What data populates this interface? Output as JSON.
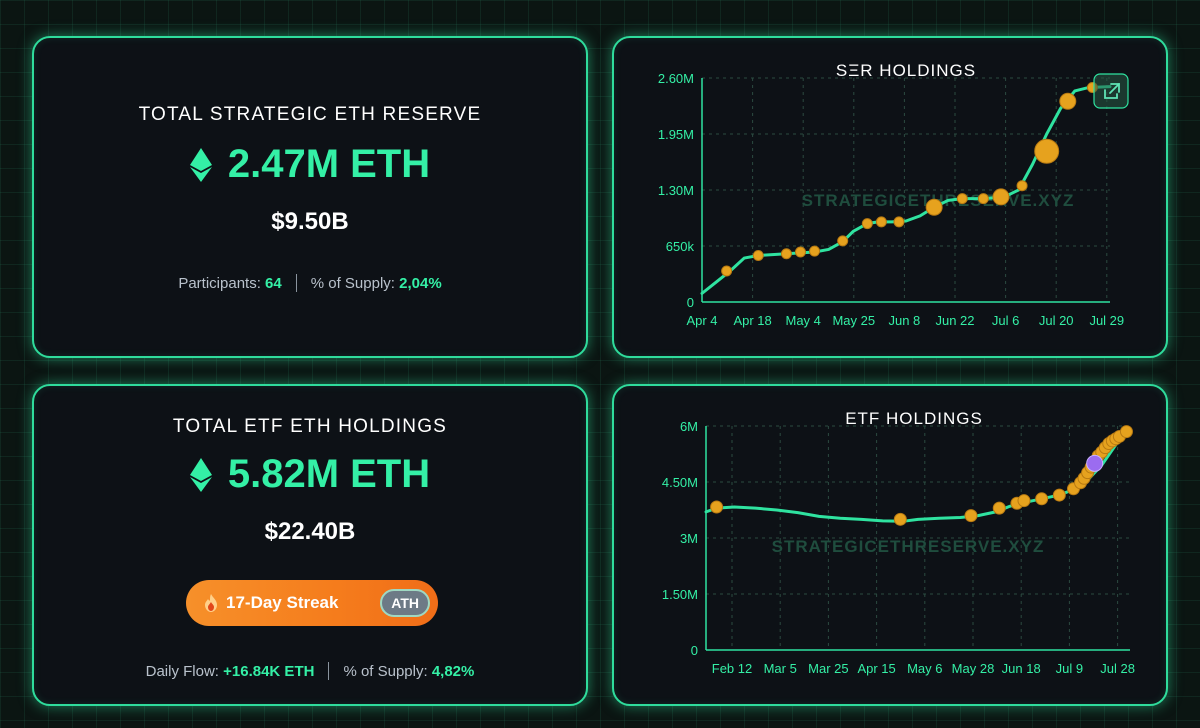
{
  "ser_summary": {
    "title": "TOTAL STRATEGIC ETH RESERVE",
    "amount": "2.47M ETH",
    "usd_value": "$9.50B",
    "participants_label": "Participants:",
    "participants_value": "64",
    "supply_label": "% of Supply:",
    "supply_value": "2,04%"
  },
  "etf_summary": {
    "title": "TOTAL ETF ETH HOLDINGS",
    "amount": "5.82M ETH",
    "usd_value": "$22.40B",
    "streak_label": "17-Day Streak",
    "ath_label": "ATH",
    "daily_flow_label": "Daily Flow:",
    "daily_flow_value": "+16.84K ETH",
    "supply_label": "% of Supply:",
    "supply_value": "4,82%"
  },
  "colors": {
    "accent": "#34f0a6",
    "line": "#2fe3a0",
    "marker": "#e6a21e",
    "marker_special": "#9b6cf0",
    "card_border": "#2fdc9c"
  },
  "icons": {
    "eth": "ethereum-icon",
    "flame": "flame-icon",
    "external_link": "external-link-icon"
  },
  "chart_data": [
    {
      "type": "line",
      "title": "SΞR HOLDINGS",
      "watermark": "STRATEGICETHRESERVE.XYZ",
      "x_ticks": [
        "Apr 4",
        "Apr 18",
        "May 4",
        "May 25",
        "Jun 8",
        "Jun 22",
        "Jul 6",
        "Jul 20",
        "Jul 29"
      ],
      "y_ticks": [
        "0",
        "650k",
        "1.30M",
        "1.95M",
        "2.60M"
      ],
      "ylim": [
        0,
        2600000
      ],
      "xlim": [
        0,
        116
      ],
      "grid": true,
      "series": [
        {
          "points": [
            [
              0,
              100000
            ],
            [
              4,
              230000
            ],
            [
              8,
              360000
            ],
            [
              12,
              510000
            ],
            [
              16,
              540000
            ],
            [
              20,
              550000
            ],
            [
              24,
              560000
            ],
            [
              28,
              570000
            ],
            [
              32,
              580000
            ],
            [
              36,
              610000
            ],
            [
              40,
              700000
            ],
            [
              43,
              820000
            ],
            [
              47,
              910000
            ],
            [
              50,
              930000
            ],
            [
              54,
              930000
            ],
            [
              58,
              940000
            ],
            [
              62,
              1000000
            ],
            [
              66,
              1100000
            ],
            [
              70,
              1180000
            ],
            [
              74,
              1200000
            ],
            [
              80,
              1200000
            ],
            [
              86,
              1220000
            ],
            [
              90,
              1300000
            ],
            [
              94,
              1600000
            ],
            [
              98,
              1950000
            ],
            [
              102,
              2250000
            ],
            [
              106,
              2450000
            ],
            [
              110,
              2490000
            ],
            [
              116,
              2500000
            ]
          ]
        }
      ],
      "markers": [
        {
          "x": 7,
          "y": 360000,
          "size": "small"
        },
        {
          "x": 16,
          "y": 540000,
          "size": "small"
        },
        {
          "x": 24,
          "y": 560000,
          "size": "small"
        },
        {
          "x": 28,
          "y": 580000,
          "size": "small"
        },
        {
          "x": 32,
          "y": 590000,
          "size": "small"
        },
        {
          "x": 40,
          "y": 710000,
          "size": "small"
        },
        {
          "x": 47,
          "y": 910000,
          "size": "small"
        },
        {
          "x": 51,
          "y": 930000,
          "size": "small"
        },
        {
          "x": 56,
          "y": 930000,
          "size": "small"
        },
        {
          "x": 66,
          "y": 1100000,
          "size": "medium"
        },
        {
          "x": 74,
          "y": 1200000,
          "size": "small"
        },
        {
          "x": 80,
          "y": 1200000,
          "size": "small"
        },
        {
          "x": 85,
          "y": 1220000,
          "size": "medium"
        },
        {
          "x": 91,
          "y": 1350000,
          "size": "small"
        },
        {
          "x": 98,
          "y": 1750000,
          "size": "large"
        },
        {
          "x": 104,
          "y": 2330000,
          "size": "medium"
        },
        {
          "x": 111,
          "y": 2490000,
          "size": "small"
        }
      ]
    },
    {
      "type": "line",
      "title": "ETF HOLDINGS",
      "watermark": "STRATEGICETHRESERVE.XYZ",
      "x_ticks": [
        "Feb 12",
        "Mar 5",
        "Mar 25",
        "Apr 15",
        "May 6",
        "May 28",
        "Jun 18",
        "Jul 9",
        "Jul 28"
      ],
      "y_ticks": [
        "0",
        "1.50M",
        "3M",
        "4.50M",
        "6M"
      ],
      "ylim": [
        0,
        6000000
      ],
      "xlim": [
        0,
        120
      ],
      "grid": true,
      "series": [
        {
          "points": [
            [
              0,
              3700000
            ],
            [
              3,
              3800000
            ],
            [
              8,
              3830000
            ],
            [
              14,
              3800000
            ],
            [
              20,
              3750000
            ],
            [
              26,
              3680000
            ],
            [
              32,
              3580000
            ],
            [
              38,
              3530000
            ],
            [
              44,
              3500000
            ],
            [
              50,
              3460000
            ],
            [
              56,
              3450000
            ],
            [
              60,
              3500000
            ],
            [
              66,
              3530000
            ],
            [
              72,
              3550000
            ],
            [
              77,
              3600000
            ],
            [
              82,
              3700000
            ],
            [
              86,
              3850000
            ],
            [
              90,
              3950000
            ],
            [
              95,
              4050000
            ],
            [
              100,
              4150000
            ],
            [
              104,
              4300000
            ],
            [
              108,
              4550000
            ],
            [
              112,
              4950000
            ],
            [
              116,
              5500000
            ],
            [
              119,
              5850000
            ]
          ]
        }
      ],
      "markers": [
        {
          "x": 3,
          "y": 3830000,
          "special": false
        },
        {
          "x": 55,
          "y": 3500000,
          "special": false
        },
        {
          "x": 75,
          "y": 3600000,
          "special": false
        },
        {
          "x": 83,
          "y": 3800000,
          "special": false
        },
        {
          "x": 88,
          "y": 3930000,
          "special": false
        },
        {
          "x": 90,
          "y": 4000000,
          "special": false
        },
        {
          "x": 95,
          "y": 4050000,
          "special": false
        },
        {
          "x": 100,
          "y": 4150000,
          "special": false
        },
        {
          "x": 104,
          "y": 4320000,
          "special": false
        },
        {
          "x": 106,
          "y": 4480000,
          "special": false
        },
        {
          "x": 107,
          "y": 4600000,
          "special": false
        },
        {
          "x": 108,
          "y": 4750000,
          "special": false
        },
        {
          "x": 109,
          "y": 4900000,
          "special": false
        },
        {
          "x": 110,
          "y": 5050000,
          "special": false
        },
        {
          "x": 111,
          "y": 5200000,
          "special": false
        },
        {
          "x": 112,
          "y": 5300000,
          "special": false
        },
        {
          "x": 113,
          "y": 5420000,
          "special": false
        },
        {
          "x": 114,
          "y": 5530000,
          "special": false
        },
        {
          "x": 115,
          "y": 5600000,
          "special": false
        },
        {
          "x": 116,
          "y": 5660000,
          "special": false
        },
        {
          "x": 117,
          "y": 5720000,
          "special": false
        },
        {
          "x": 119,
          "y": 5850000,
          "special": false
        },
        {
          "x": 110,
          "y": 5000000,
          "special": true
        }
      ]
    }
  ]
}
